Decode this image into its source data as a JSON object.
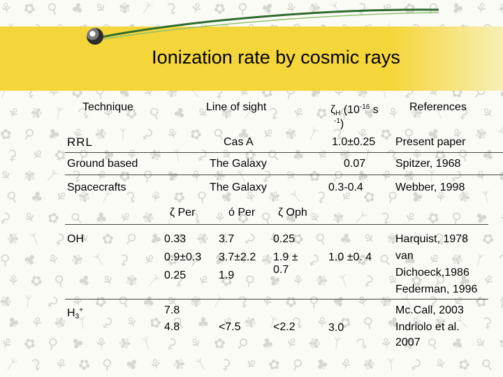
{
  "slide": {
    "title": "Ionization rate by cosmic rays",
    "colors": {
      "band": "#f5d63a",
      "swoosh": "#2f6b2f",
      "background": "#fbfbf6"
    }
  },
  "table": {
    "headers": {
      "technique": "Technique",
      "line_of_sight": "Line of sight",
      "rate_symbol": "ζ",
      "rate_sub": "H",
      "rate_open": " (10",
      "rate_exp": "-16",
      "rate_unit": " s",
      "rate_exp2": "-1",
      "rate_close": ")",
      "references": "References"
    },
    "rows": [
      {
        "technique": "RRL",
        "line": "Cas A",
        "rate": "1.0±0.25",
        "ref": "Present paper"
      },
      {
        "technique": "Ground based",
        "line": "The Galaxy",
        "rate": "0.07",
        "ref": "Spitzer, 1968"
      },
      {
        "technique": "Spacecrafts",
        "line": "The Galaxy",
        "rate": "0.3-0.4",
        "ref": "Webber, 1998"
      }
    ],
    "subheaders": {
      "zper": "ζ Per",
      "oper": "ó Per",
      "zoph": "ζ Oph"
    },
    "oh": {
      "technique": "OH",
      "zper": [
        "0.33",
        "0.9±0.3",
        "0.25"
      ],
      "oper": [
        "3.7",
        "3.7±2.2",
        "1.9"
      ],
      "zoph": [
        "0.25",
        "1.9 ±",
        "0.7"
      ],
      "rate": "1.0 ±0. 4",
      "refs": [
        "Harquist, 1978",
        "van",
        "Dichoeck,1986",
        "Federman, 1996"
      ]
    },
    "h3": {
      "technique_base": "H",
      "technique_sub": "3",
      "technique_sup": "+",
      "zper": [
        "7.8",
        "4.8"
      ],
      "oper": "<7.5",
      "zoph": "<2.2",
      "rate": "3.0",
      "refs": [
        "Mc.Call, 2003",
        "Indriolo et al.",
        "2007"
      ]
    }
  }
}
